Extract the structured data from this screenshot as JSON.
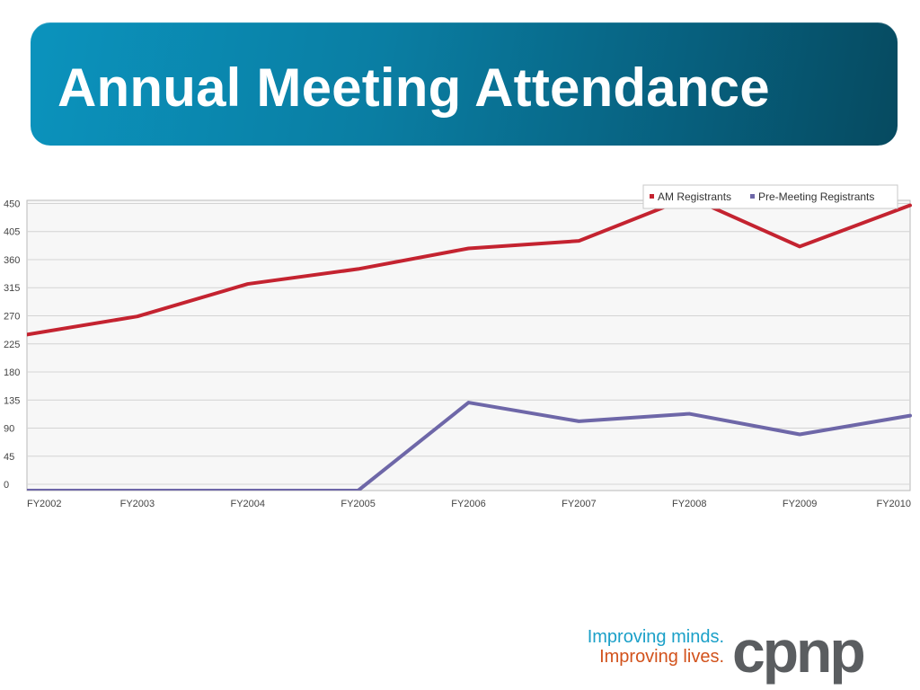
{
  "slide": {
    "title": "Annual Meeting Attendance"
  },
  "chart_data": {
    "type": "line",
    "title": "",
    "xlabel": "",
    "ylabel": "",
    "categories": [
      "FY2002",
      "FY2003",
      "FY2004",
      "FY2005",
      "FY2006",
      "FY2007",
      "FY2008",
      "FY2009",
      "FY2010"
    ],
    "yticks": [
      0,
      45,
      90,
      135,
      180,
      225,
      270,
      315,
      360,
      405,
      450
    ],
    "ylim": [
      -10,
      455
    ],
    "grid": true,
    "legend_position": "top-right",
    "series": [
      {
        "name": "AM Registrants",
        "color": "#c42330",
        "values": [
          240,
          269,
          321,
          345,
          378,
          390,
          460,
          381,
          447
        ]
      },
      {
        "name": "Pre-Meeting Registrants",
        "color": "#6e67a8",
        "values": [
          -10,
          -10,
          -10,
          -10,
          131,
          101,
          113,
          80,
          110
        ]
      }
    ]
  },
  "footer": {
    "tagline_line1": "Improving minds.",
    "tagline_line2": "Improving lives.",
    "brand": "cpnp",
    "tagline_color1": "#1ba0c8",
    "tagline_color2": "#d2521c",
    "brand_color": "#5a5d60"
  }
}
